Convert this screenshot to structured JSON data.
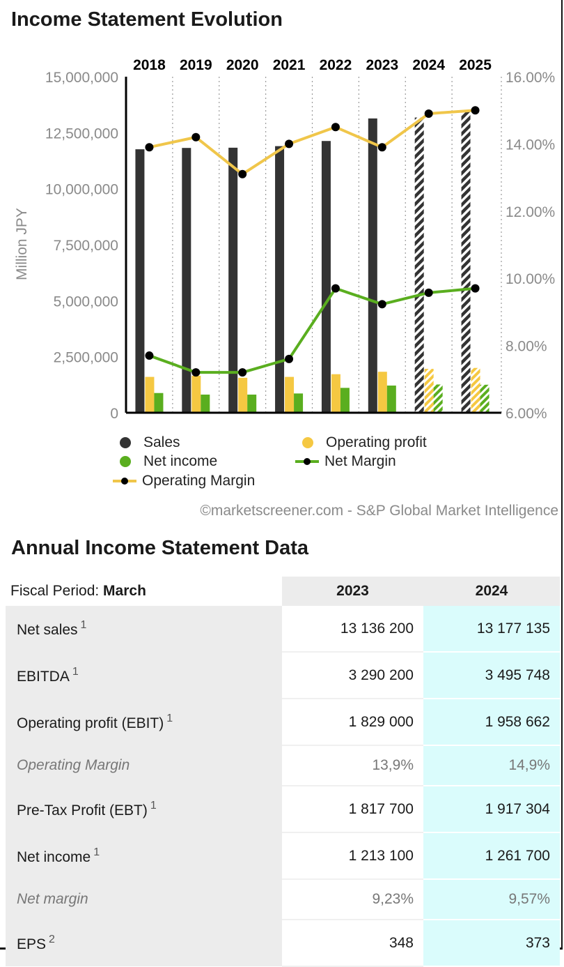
{
  "header": {
    "title": "Income Statement Evolution"
  },
  "chart_data": {
    "type": "bar",
    "title": "Income Statement Evolution",
    "categories": [
      "2018",
      "2019",
      "2020",
      "2021",
      "2022",
      "2023",
      "2024",
      "2025"
    ],
    "forecast_categories": [
      "2024",
      "2025"
    ],
    "ylabel": "Million JPY",
    "ylim": [
      0,
      15000000
    ],
    "yticks": [
      "0",
      "2,500,000",
      "5,000,000",
      "7,500,000",
      "10,000,000",
      "12,500,000",
      "15,000,000"
    ],
    "y2lim": [
      6,
      16
    ],
    "y2ticks": [
      "6.00%",
      "8.00%",
      "10.00%",
      "12.00%",
      "14.00%",
      "16.00%"
    ],
    "series": [
      {
        "name": "Sales",
        "type": "bar",
        "color": "#333333",
        "values": [
          11760000,
          11820000,
          11830000,
          11900000,
          12130000,
          13136200,
          13177135,
          13500000
        ]
      },
      {
        "name": "Operating profit",
        "type": "bar",
        "color": "#f5c842",
        "values": [
          1600000,
          1650000,
          1560000,
          1600000,
          1720000,
          1829000,
          1958662,
          2000000
        ]
      },
      {
        "name": "Net income",
        "type": "bar",
        "color": "#5aae1f",
        "values": [
          880000,
          810000,
          810000,
          860000,
          1110000,
          1213100,
          1261700,
          1250000
        ]
      },
      {
        "name": "Operating Margin",
        "type": "line",
        "axis": "right",
        "color": "#f0c64a",
        "values": [
          13.9,
          14.2,
          13.1,
          14.0,
          14.5,
          13.9,
          14.9,
          15.0
        ]
      },
      {
        "name": "Net Margin",
        "type": "line",
        "axis": "right",
        "color": "#5aae1f",
        "values": [
          7.7,
          7.2,
          7.2,
          7.6,
          9.7,
          9.23,
          9.57,
          9.7
        ]
      }
    ],
    "legend": [
      "Sales",
      "Operating profit",
      "Net income",
      "Net Margin",
      "Operating Margin"
    ],
    "source": "©marketscreener.com - S&P Global Market Intelligence"
  },
  "table": {
    "title": "Annual Income Statement Data",
    "period_label": "Fiscal Period: ",
    "period_value": "March",
    "columns": [
      "2023",
      "2024"
    ],
    "rows": [
      {
        "label": "Net sales",
        "note": "1",
        "v2023": "13 136 200",
        "v2024": "13 177 135"
      },
      {
        "label": "EBITDA",
        "note": "1",
        "v2023": "3 290 200",
        "v2024": "3 495 748"
      },
      {
        "label": "Operating profit (EBIT)",
        "note": "1",
        "v2023": "1 829 000",
        "v2024": "1 958 662"
      },
      {
        "label": "Operating Margin",
        "note": "",
        "v2023": "13,9%",
        "v2024": "14,9%"
      },
      {
        "label": "Pre-Tax Profit (EBT)",
        "note": "1",
        "v2023": "1 817 700",
        "v2024": "1 917 304"
      },
      {
        "label": "Net income",
        "note": "1",
        "v2023": "1 213 100",
        "v2024": "1 261 700"
      },
      {
        "label": "Net margin",
        "note": "",
        "v2023": "9,23%",
        "v2024": "9,57%"
      },
      {
        "label": "EPS",
        "note": "2",
        "v2023": "348",
        "v2024": "373"
      }
    ]
  }
}
